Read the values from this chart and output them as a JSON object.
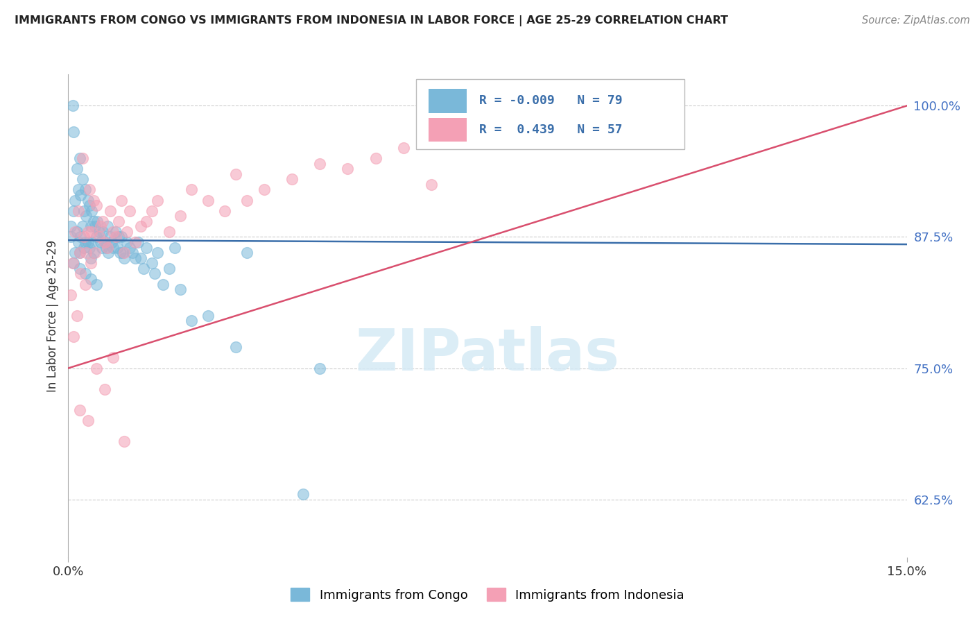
{
  "title": "IMMIGRANTS FROM CONGO VS IMMIGRANTS FROM INDONESIA IN LABOR FORCE | AGE 25-29 CORRELATION CHART",
  "source": "Source: ZipAtlas.com",
  "ylabel": "In Labor Force | Age 25-29",
  "xlim": [
    0.0,
    15.0
  ],
  "ylim": [
    57.0,
    103.0
  ],
  "ytick_vals": [
    62.5,
    75.0,
    87.5,
    100.0
  ],
  "xtick_vals": [
    0.0,
    15.0
  ],
  "legend_label1": "Immigrants from Congo",
  "legend_label2": "Immigrants from Indonesia",
  "r1": -0.009,
  "n1": 79,
  "r2": 0.439,
  "n2": 57,
  "color_blue": "#7ab8d9",
  "color_pink": "#f4a0b5",
  "trend_color_blue": "#3a6eaa",
  "trend_color_pink": "#d94f6e",
  "background_color": "#ffffff",
  "watermark_text": "ZIPatlas",
  "watermark_color": "#d5eaf5",
  "congo_x": [
    0.05,
    0.05,
    0.08,
    0.1,
    0.1,
    0.12,
    0.12,
    0.15,
    0.15,
    0.18,
    0.18,
    0.2,
    0.2,
    0.22,
    0.22,
    0.25,
    0.25,
    0.28,
    0.28,
    0.3,
    0.3,
    0.32,
    0.35,
    0.35,
    0.38,
    0.38,
    0.4,
    0.4,
    0.42,
    0.42,
    0.45,
    0.45,
    0.48,
    0.5,
    0.52,
    0.55,
    0.58,
    0.6,
    0.62,
    0.65,
    0.68,
    0.7,
    0.72,
    0.75,
    0.78,
    0.8,
    0.85,
    0.88,
    0.9,
    0.92,
    0.95,
    0.98,
    1.0,
    1.05,
    1.1,
    1.15,
    1.2,
    1.25,
    1.3,
    1.35,
    1.4,
    1.5,
    1.55,
    1.6,
    1.7,
    1.8,
    1.9,
    2.0,
    2.2,
    2.5,
    3.0,
    3.2,
    4.2,
    4.5,
    0.1,
    0.2,
    0.3,
    0.4,
    0.5
  ],
  "congo_y": [
    87.5,
    88.5,
    100.0,
    97.5,
    90.0,
    91.0,
    86.0,
    94.0,
    88.0,
    92.0,
    87.0,
    95.0,
    86.0,
    91.5,
    87.5,
    93.0,
    88.5,
    90.0,
    86.5,
    92.0,
    87.0,
    89.5,
    91.0,
    87.0,
    90.5,
    86.5,
    88.5,
    85.5,
    90.0,
    87.0,
    89.0,
    86.0,
    88.5,
    87.5,
    89.0,
    88.0,
    87.0,
    86.5,
    88.0,
    87.0,
    86.5,
    88.5,
    86.0,
    87.5,
    87.0,
    86.5,
    88.0,
    86.5,
    87.5,
    86.0,
    87.5,
    86.0,
    85.5,
    87.0,
    86.5,
    86.0,
    85.5,
    87.0,
    85.5,
    84.5,
    86.5,
    85.0,
    84.0,
    86.0,
    83.0,
    84.5,
    86.5,
    82.5,
    79.5,
    80.0,
    77.0,
    86.0,
    63.0,
    75.0,
    85.0,
    84.5,
    84.0,
    83.5,
    83.0
  ],
  "indonesia_x": [
    0.05,
    0.08,
    0.1,
    0.12,
    0.15,
    0.18,
    0.2,
    0.22,
    0.25,
    0.28,
    0.3,
    0.32,
    0.35,
    0.38,
    0.4,
    0.42,
    0.45,
    0.48,
    0.5,
    0.55,
    0.58,
    0.62,
    0.65,
    0.7,
    0.75,
    0.8,
    0.85,
    0.9,
    0.95,
    1.0,
    1.05,
    1.1,
    1.2,
    1.3,
    1.4,
    1.5,
    1.6,
    1.8,
    2.0,
    2.2,
    2.5,
    2.8,
    3.0,
    3.2,
    3.5,
    4.0,
    4.5,
    5.0,
    5.5,
    6.0,
    6.5,
    0.2,
    0.35,
    0.5,
    0.65,
    0.8,
    1.0
  ],
  "indonesia_y": [
    82.0,
    85.0,
    78.0,
    88.0,
    80.0,
    90.0,
    86.0,
    84.0,
    95.0,
    87.5,
    83.0,
    86.0,
    88.0,
    92.0,
    85.0,
    88.0,
    91.0,
    86.0,
    90.5,
    87.5,
    88.5,
    89.0,
    87.0,
    86.5,
    90.0,
    88.0,
    87.5,
    89.0,
    91.0,
    86.0,
    88.0,
    90.0,
    87.0,
    88.5,
    89.0,
    90.0,
    91.0,
    88.0,
    89.5,
    92.0,
    91.0,
    90.0,
    93.5,
    91.0,
    92.0,
    93.0,
    94.5,
    94.0,
    95.0,
    96.0,
    92.5,
    71.0,
    70.0,
    75.0,
    73.0,
    76.0,
    68.0
  ]
}
